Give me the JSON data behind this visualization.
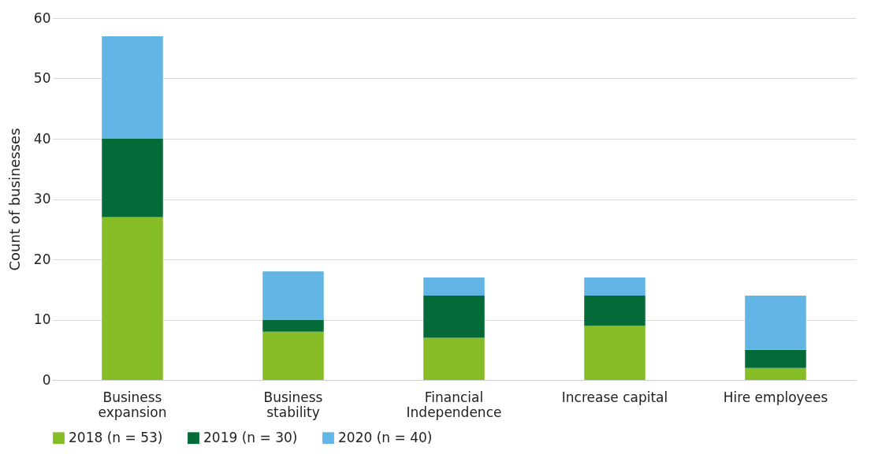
{
  "chart_data": {
    "type": "bar",
    "stacked": true,
    "ylabel": "Count of businesses",
    "categories": [
      "Business expansion",
      "Business stability",
      "Financial Independence",
      "Increase capital",
      "Hire employees"
    ],
    "series": [
      {
        "name": "2018 (n = 53)",
        "color": "#86bc25",
        "values": [
          27,
          8,
          7,
          9,
          2
        ]
      },
      {
        "name": "2019 (n = 30)",
        "color": "#046a38",
        "values": [
          13,
          2,
          7,
          5,
          3
        ]
      },
      {
        "name": "2020 (n = 40)",
        "color": "#62b5e5",
        "values": [
          17,
          8,
          3,
          3,
          9
        ]
      }
    ],
    "ylim": [
      0,
      60
    ],
    "yticks": [
      0,
      10,
      20,
      30,
      40,
      50,
      60
    ],
    "grid": "y",
    "legend": "bottom"
  }
}
